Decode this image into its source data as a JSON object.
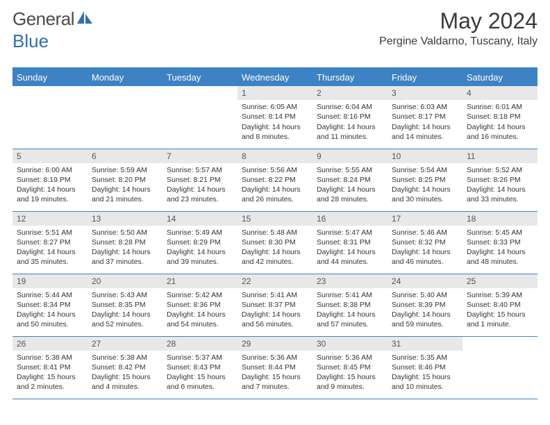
{
  "brand": {
    "name1": "General",
    "name2": "Blue",
    "color1": "#6a6a6a",
    "color2": "#2f6fb0"
  },
  "title": "May 2024",
  "location": "Pergine Valdarno, Tuscany, Italy",
  "colors": {
    "header_bg": "#3d82c4",
    "header_fg": "#ffffff",
    "daynum_bg": "#e8e8e8",
    "border": "#3d82c4"
  },
  "weekdays": [
    "Sunday",
    "Monday",
    "Tuesday",
    "Wednesday",
    "Thursday",
    "Friday",
    "Saturday"
  ],
  "weeks": [
    [
      null,
      null,
      null,
      {
        "n": "1",
        "sr": "Sunrise: 6:05 AM",
        "ss": "Sunset: 8:14 PM",
        "dl": "Daylight: 14 hours and 8 minutes."
      },
      {
        "n": "2",
        "sr": "Sunrise: 6:04 AM",
        "ss": "Sunset: 8:16 PM",
        "dl": "Daylight: 14 hours and 11 minutes."
      },
      {
        "n": "3",
        "sr": "Sunrise: 6:03 AM",
        "ss": "Sunset: 8:17 PM",
        "dl": "Daylight: 14 hours and 14 minutes."
      },
      {
        "n": "4",
        "sr": "Sunrise: 6:01 AM",
        "ss": "Sunset: 8:18 PM",
        "dl": "Daylight: 14 hours and 16 minutes."
      }
    ],
    [
      {
        "n": "5",
        "sr": "Sunrise: 6:00 AM",
        "ss": "Sunset: 8:19 PM",
        "dl": "Daylight: 14 hours and 19 minutes."
      },
      {
        "n": "6",
        "sr": "Sunrise: 5:59 AM",
        "ss": "Sunset: 8:20 PM",
        "dl": "Daylight: 14 hours and 21 minutes."
      },
      {
        "n": "7",
        "sr": "Sunrise: 5:57 AM",
        "ss": "Sunset: 8:21 PM",
        "dl": "Daylight: 14 hours and 23 minutes."
      },
      {
        "n": "8",
        "sr": "Sunrise: 5:56 AM",
        "ss": "Sunset: 8:22 PM",
        "dl": "Daylight: 14 hours and 26 minutes."
      },
      {
        "n": "9",
        "sr": "Sunrise: 5:55 AM",
        "ss": "Sunset: 8:24 PM",
        "dl": "Daylight: 14 hours and 28 minutes."
      },
      {
        "n": "10",
        "sr": "Sunrise: 5:54 AM",
        "ss": "Sunset: 8:25 PM",
        "dl": "Daylight: 14 hours and 30 minutes."
      },
      {
        "n": "11",
        "sr": "Sunrise: 5:52 AM",
        "ss": "Sunset: 8:26 PM",
        "dl": "Daylight: 14 hours and 33 minutes."
      }
    ],
    [
      {
        "n": "12",
        "sr": "Sunrise: 5:51 AM",
        "ss": "Sunset: 8:27 PM",
        "dl": "Daylight: 14 hours and 35 minutes."
      },
      {
        "n": "13",
        "sr": "Sunrise: 5:50 AM",
        "ss": "Sunset: 8:28 PM",
        "dl": "Daylight: 14 hours and 37 minutes."
      },
      {
        "n": "14",
        "sr": "Sunrise: 5:49 AM",
        "ss": "Sunset: 8:29 PM",
        "dl": "Daylight: 14 hours and 39 minutes."
      },
      {
        "n": "15",
        "sr": "Sunrise: 5:48 AM",
        "ss": "Sunset: 8:30 PM",
        "dl": "Daylight: 14 hours and 42 minutes."
      },
      {
        "n": "16",
        "sr": "Sunrise: 5:47 AM",
        "ss": "Sunset: 8:31 PM",
        "dl": "Daylight: 14 hours and 44 minutes."
      },
      {
        "n": "17",
        "sr": "Sunrise: 5:46 AM",
        "ss": "Sunset: 8:32 PM",
        "dl": "Daylight: 14 hours and 46 minutes."
      },
      {
        "n": "18",
        "sr": "Sunrise: 5:45 AM",
        "ss": "Sunset: 8:33 PM",
        "dl": "Daylight: 14 hours and 48 minutes."
      }
    ],
    [
      {
        "n": "19",
        "sr": "Sunrise: 5:44 AM",
        "ss": "Sunset: 8:34 PM",
        "dl": "Daylight: 14 hours and 50 minutes."
      },
      {
        "n": "20",
        "sr": "Sunrise: 5:43 AM",
        "ss": "Sunset: 8:35 PM",
        "dl": "Daylight: 14 hours and 52 minutes."
      },
      {
        "n": "21",
        "sr": "Sunrise: 5:42 AM",
        "ss": "Sunset: 8:36 PM",
        "dl": "Daylight: 14 hours and 54 minutes."
      },
      {
        "n": "22",
        "sr": "Sunrise: 5:41 AM",
        "ss": "Sunset: 8:37 PM",
        "dl": "Daylight: 14 hours and 56 minutes."
      },
      {
        "n": "23",
        "sr": "Sunrise: 5:41 AM",
        "ss": "Sunset: 8:38 PM",
        "dl": "Daylight: 14 hours and 57 minutes."
      },
      {
        "n": "24",
        "sr": "Sunrise: 5:40 AM",
        "ss": "Sunset: 8:39 PM",
        "dl": "Daylight: 14 hours and 59 minutes."
      },
      {
        "n": "25",
        "sr": "Sunrise: 5:39 AM",
        "ss": "Sunset: 8:40 PM",
        "dl": "Daylight: 15 hours and 1 minute."
      }
    ],
    [
      {
        "n": "26",
        "sr": "Sunrise: 5:38 AM",
        "ss": "Sunset: 8:41 PM",
        "dl": "Daylight: 15 hours and 2 minutes."
      },
      {
        "n": "27",
        "sr": "Sunrise: 5:38 AM",
        "ss": "Sunset: 8:42 PM",
        "dl": "Daylight: 15 hours and 4 minutes."
      },
      {
        "n": "28",
        "sr": "Sunrise: 5:37 AM",
        "ss": "Sunset: 8:43 PM",
        "dl": "Daylight: 15 hours and 6 minutes."
      },
      {
        "n": "29",
        "sr": "Sunrise: 5:36 AM",
        "ss": "Sunset: 8:44 PM",
        "dl": "Daylight: 15 hours and 7 minutes."
      },
      {
        "n": "30",
        "sr": "Sunrise: 5:36 AM",
        "ss": "Sunset: 8:45 PM",
        "dl": "Daylight: 15 hours and 9 minutes."
      },
      {
        "n": "31",
        "sr": "Sunrise: 5:35 AM",
        "ss": "Sunset: 8:46 PM",
        "dl": "Daylight: 15 hours and 10 minutes."
      },
      null
    ]
  ]
}
